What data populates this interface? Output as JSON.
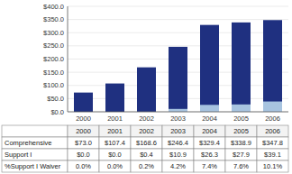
{
  "chart_data": {
    "type": "bar",
    "categories": [
      "2000",
      "2001",
      "2002",
      "2003",
      "2004",
      "2005",
      "2006"
    ],
    "series": [
      {
        "name": "Comprehensive",
        "color": "#1F3080",
        "values": [
          73.0,
          107.4,
          168.6,
          246.4,
          329.4,
          338.9,
          347.8
        ],
        "value_labels": [
          "$73.0",
          "$107.4",
          "$168.6",
          "$246.4",
          "$329.4",
          "$338.9",
          "$347.8"
        ]
      },
      {
        "name": "Support I",
        "color": "#A8C4E0",
        "values": [
          0.0,
          0.0,
          0.4,
          10.9,
          26.3,
          27.9,
          39.1
        ],
        "value_labels": [
          "$0.0",
          "$0.0",
          "$0.4",
          "$10.9",
          "$26.3",
          "$27.9",
          "$39.1"
        ]
      }
    ],
    "table": [
      {
        "name": "%Support I Waiver",
        "values": [
          0.0,
          0.0,
          0.2,
          4.2,
          7.4,
          7.6,
          10.1
        ],
        "value_labels": [
          "0.0%",
          "0.0%",
          "0.2%",
          "4.2%",
          "7.4%",
          "7.6%",
          "10.1%"
        ]
      }
    ],
    "stacked": false,
    "ylim": [
      0,
      400
    ],
    "yticks": [
      {
        "value": 0,
        "label": "$0.0"
      },
      {
        "value": 50,
        "label": "$50.0"
      },
      {
        "value": 100,
        "label": "$100.0"
      },
      {
        "value": 150,
        "label": "$150.0"
      },
      {
        "value": 200,
        "label": "$200.0"
      },
      {
        "value": 250,
        "label": "$250.0"
      },
      {
        "value": 300,
        "label": "$300.0"
      },
      {
        "value": 350,
        "label": "$350.0"
      },
      {
        "value": 400,
        "label": "$400.0"
      }
    ],
    "grid": true
  }
}
